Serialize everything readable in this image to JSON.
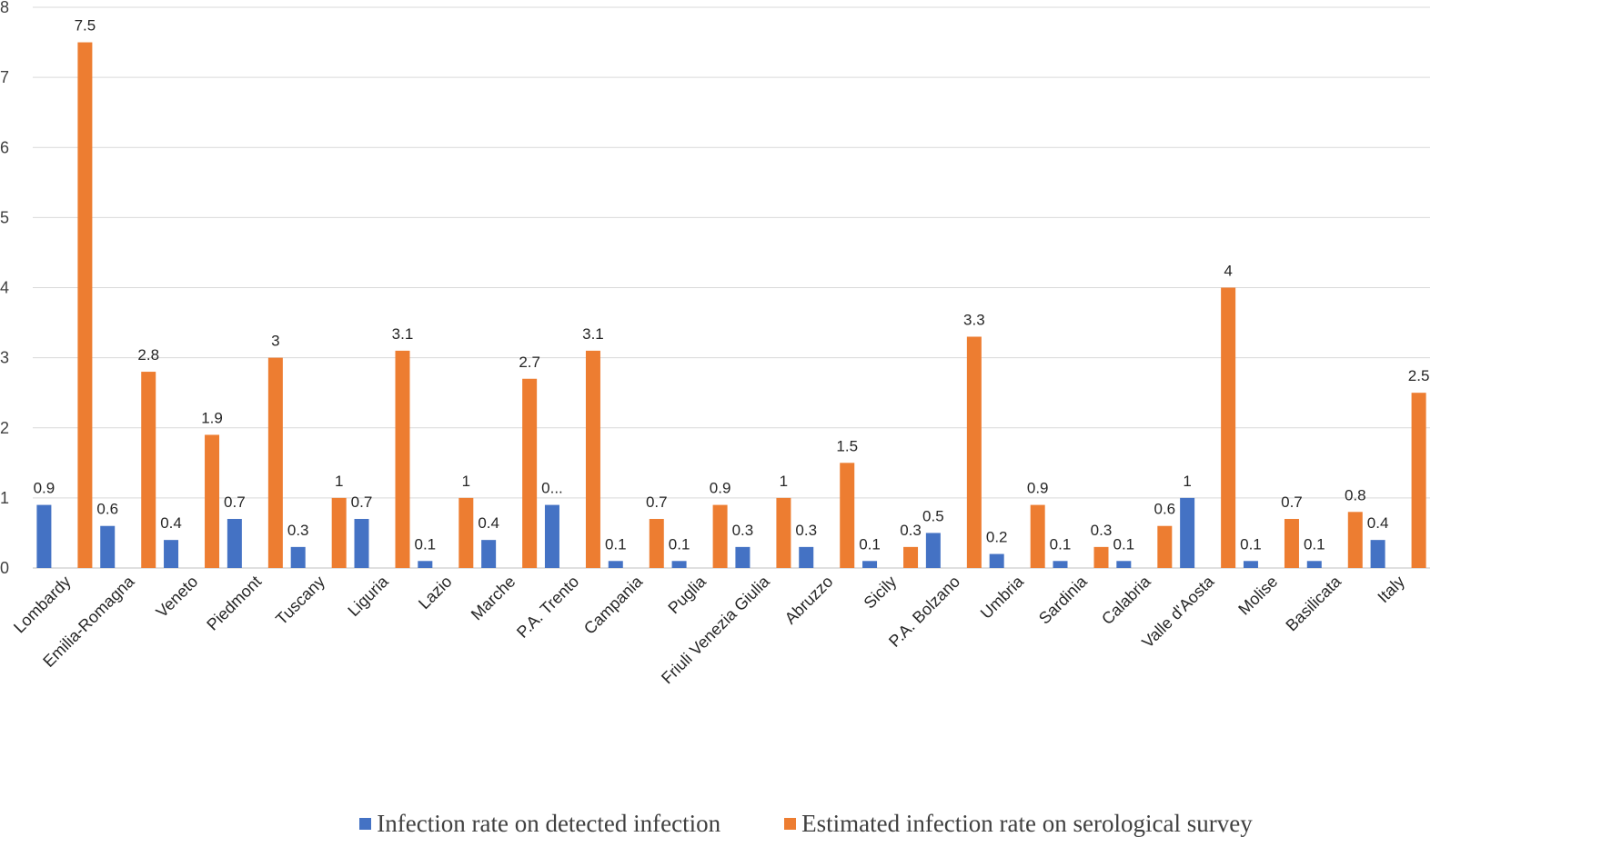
{
  "colors": {
    "detected": "#4472C4",
    "serological": "#ED7D31",
    "grid": "#D9D9D9",
    "axis": "#BFBFBF"
  },
  "legend": {
    "detected": "Infection rate on detected infection",
    "serological": "Estimated infection rate on serological survey"
  },
  "chart_data": {
    "type": "bar",
    "ylim": [
      0,
      8
    ],
    "yticks": [
      0,
      1,
      2,
      3,
      4,
      5,
      6,
      7,
      8
    ],
    "grid": true,
    "legend_position": "bottom",
    "categories": [
      "Lombardy",
      "Emilia-Romagna",
      "Veneto",
      "Piedmont",
      "Tuscany",
      "Liguria",
      "Lazio",
      "Marche",
      "P.A. Trento",
      "Campania",
      "Puglia",
      "Friuli Venezia Giulia",
      "Abruzzo",
      "Sicily",
      "P.A. Bolzano",
      "Umbria",
      "Sardinia",
      "Calabria",
      "Valle d'Aosta",
      "Molise",
      "Basilicata",
      "Italy"
    ],
    "series": [
      {
        "name": "Infection rate on detected infection",
        "values": [
          0.9,
          0.6,
          0.4,
          0.7,
          0.3,
          0.7,
          0.1,
          0.4,
          0.9,
          0.1,
          0.1,
          0.3,
          0.3,
          0.1,
          0.5,
          0.2,
          0.1,
          0.1,
          1,
          0.1,
          0.1,
          0.4
        ],
        "labels": [
          "0.9",
          "0.6",
          "0.4",
          "0.7",
          "0.3",
          "0.7",
          "0.1",
          "0.4",
          "0...",
          "0.1",
          "0.1",
          "0.3",
          "0.3",
          "0.1",
          "0.5",
          "0.2",
          "0.1",
          "0.1",
          "1",
          "0.1",
          "0.1",
          "0.4"
        ]
      },
      {
        "name": "Estimated infection rate on serological survey",
        "values": [
          7.5,
          2.8,
          1.9,
          3,
          1,
          3.1,
          1,
          2.7,
          3.1,
          0.7,
          0.9,
          1,
          1.5,
          0.3,
          3.3,
          0.9,
          0.3,
          0.6,
          4,
          0.7,
          0.8,
          2.5
        ],
        "labels": [
          "7.5",
          "2.8",
          "1.9",
          "3",
          "1",
          "3.1",
          "1",
          "2.7",
          "3.1",
          "0.7",
          "0.9",
          "1",
          "1.5",
          "0.3",
          "3.3",
          "0.9",
          "0.3",
          "0.6",
          "4",
          "0.7",
          "0.8",
          "2.5"
        ]
      }
    ]
  }
}
